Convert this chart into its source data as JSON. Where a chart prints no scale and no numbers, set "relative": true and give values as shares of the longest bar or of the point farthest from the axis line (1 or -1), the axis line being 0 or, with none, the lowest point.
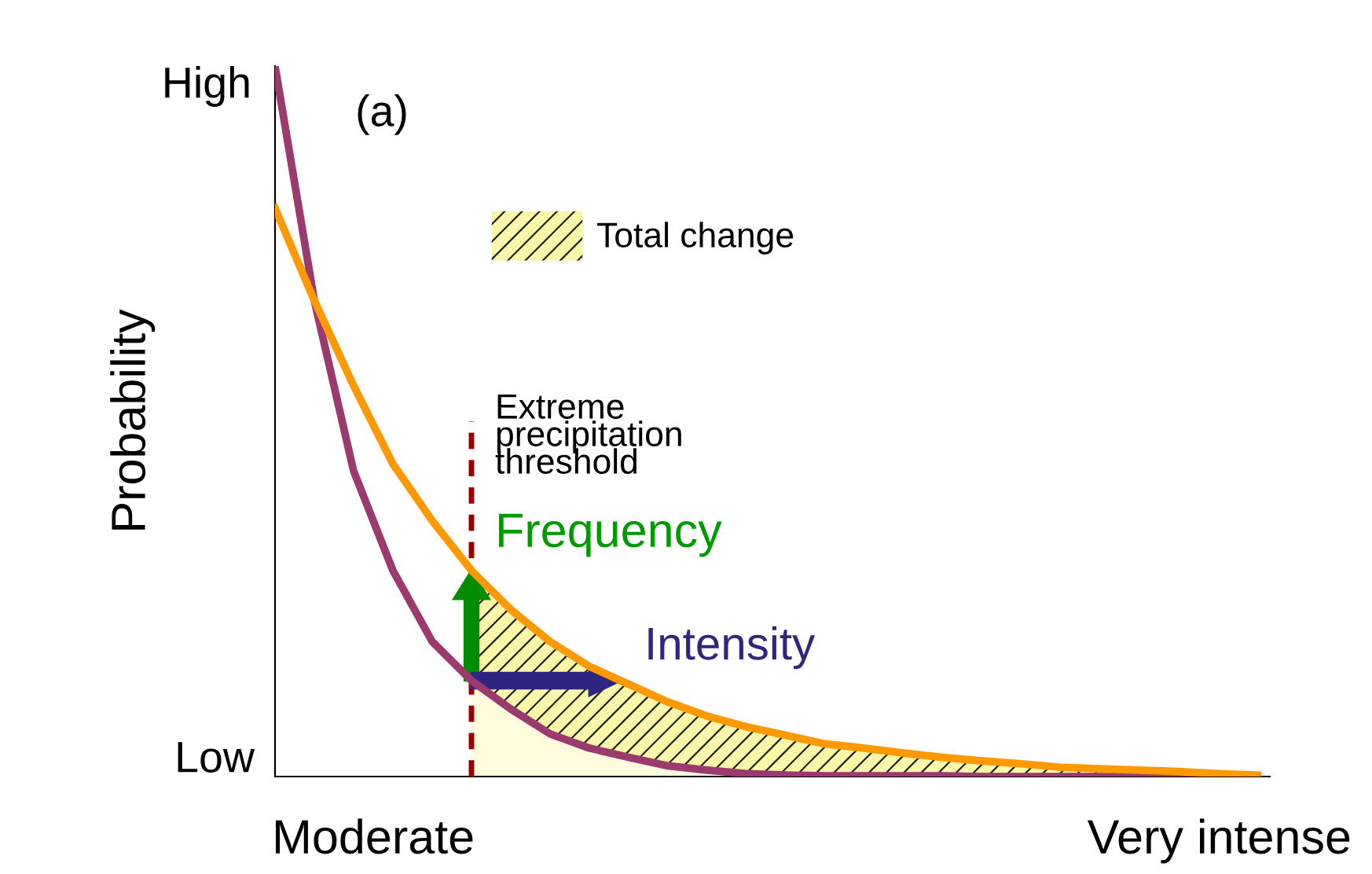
{
  "chart_data": {
    "type": "line",
    "relative": true,
    "ylabel": "Probability",
    "categories": [
      null,
      null,
      null,
      null,
      null,
      null,
      null,
      null,
      null,
      null,
      null,
      null,
      null,
      null,
      null,
      null,
      null,
      null,
      null,
      null,
      null,
      null,
      null,
      null,
      null,
      null
    ],
    "series": [
      {
        "color": "#9b3a6e",
        "values": [
          1.0,
          0.67,
          0.43,
          0.29,
          0.19,
          0.135,
          0.095,
          0.06,
          0.04,
          0.027,
          0.015,
          0.009,
          0.004,
          0.002,
          0.001,
          0.001,
          0.001,
          0.001,
          0,
          0,
          0,
          0,
          0,
          0,
          0,
          0
        ]
      },
      {
        "color": "#ff9900",
        "values": [
          0.8,
          0.67,
          0.55,
          0.44,
          0.36,
          0.29,
          0.235,
          0.19,
          0.155,
          0.13,
          0.105,
          0.085,
          0.07,
          0.058,
          0.046,
          0.04,
          0.033,
          0.027,
          0.022,
          0.018,
          0.013,
          0.011,
          0.009,
          0.007,
          0.004,
          0.002
        ]
      },
      {
        "type": "area",
        "name": "Total change",
        "color": "#fbf7a8",
        "values": [
          null,
          null,
          null,
          null,
          null,
          0.29,
          0.235,
          0.19,
          0.155,
          0.13,
          0.105,
          0.085,
          0.07,
          0.058,
          0.046,
          0.04,
          0.033,
          0.027,
          0.022,
          0.018,
          0.013,
          0.011,
          0.009,
          0.007,
          0.004,
          0.002
        ]
      },
      {
        "type": "area",
        "color": "#fffbdc",
        "values": [
          null,
          null,
          null,
          null,
          null,
          0.135,
          0.095,
          0.06,
          0.04,
          0.027,
          0.015,
          0.009,
          0.004,
          0.002,
          0.001,
          0.001,
          0.001,
          0.001,
          0,
          0,
          0,
          0,
          0,
          0,
          0,
          0
        ]
      }
    ],
    "annotations": [
      "(a)",
      "High",
      "Low",
      "Moderate",
      "Very intense",
      "Frequency",
      "Intensity",
      "Extreme\nprecipitation\nthreshold"
    ],
    "legend": "top"
  }
}
